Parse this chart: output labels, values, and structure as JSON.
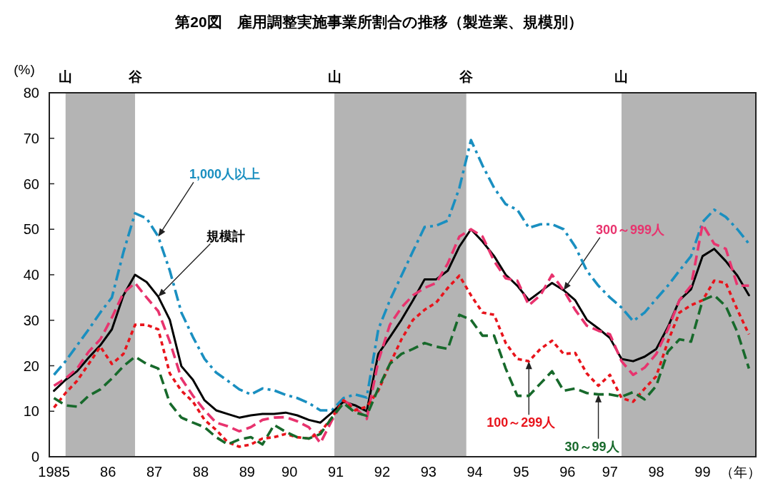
{
  "chart_data": {
    "type": "line",
    "title": "第20図　雇用調整実施事業所割合の推移（製造業、規模別）",
    "ylabel": "(%)",
    "xlabel": "（年）",
    "x": [
      "1985-01",
      "1985-04",
      "1985-07",
      "1985-10",
      "1986-01",
      "1986-04",
      "1986-07",
      "1986-10",
      "1987-01",
      "1987-04",
      "1987-07",
      "1987-10",
      "1988-01",
      "1988-04",
      "1988-07",
      "1988-10",
      "1989-01",
      "1989-04",
      "1989-07",
      "1989-10",
      "1990-01",
      "1990-04",
      "1990-07",
      "1990-10",
      "1991-01",
      "1991-04",
      "1991-07",
      "1991-10",
      "1992-01",
      "1992-04",
      "1992-07",
      "1992-10",
      "1993-01",
      "1993-04",
      "1993-07",
      "1993-10",
      "1994-01",
      "1994-04",
      "1994-07",
      "1994-10",
      "1995-01",
      "1995-04",
      "1995-07",
      "1995-10",
      "1996-01",
      "1996-04",
      "1996-07",
      "1996-10",
      "1997-01",
      "1997-04",
      "1997-07",
      "1997-10",
      "1998-01",
      "1998-04",
      "1998-07",
      "1998-10",
      "1999-01",
      "1999-04",
      "1999-07",
      "1999-10",
      "2000-01"
    ],
    "series": [
      {
        "name": "1,000人以上",
        "color": "#1a8fc0",
        "line_style": "dashdot",
        "values": [
          18,
          21,
          24.5,
          28,
          31.7,
          35,
          45,
          53.5,
          52.4,
          48.4,
          40.9,
          31.7,
          26.3,
          21.5,
          18.5,
          16.7,
          14.8,
          13.7,
          15,
          14.6,
          13.6,
          12.9,
          11.8,
          10.2,
          10.2,
          12.9,
          13.7,
          13,
          28,
          34.4,
          39.8,
          45.2,
          50.5,
          50.8,
          51.9,
          59.1,
          69.6,
          64,
          59.1,
          55.5,
          54.3,
          50.3,
          51.1,
          51.1,
          50,
          46.2,
          40.9,
          37.6,
          35,
          32.8,
          29.8,
          31.7,
          34.7,
          37.6,
          40.9,
          44.1,
          51.6,
          54.3,
          52.7,
          50,
          46.8
        ]
      },
      {
        "name": "規模計",
        "color": "#000000",
        "line_style": "solid",
        "values": [
          14.5,
          16.9,
          18.8,
          21.8,
          24.5,
          28,
          35.5,
          40,
          38.4,
          35.2,
          30.1,
          19.9,
          16.9,
          12.4,
          10.2,
          9.4,
          8.6,
          9.1,
          9.4,
          9.4,
          9.7,
          9.1,
          8.1,
          7.5,
          9.7,
          12.1,
          11.3,
          10,
          22.6,
          26.3,
          30.1,
          34.4,
          39,
          39,
          40.9,
          46.2,
          50,
          47.3,
          44.1,
          40,
          37.6,
          34.4,
          36.3,
          38.2,
          36.6,
          34.4,
          30.1,
          28.2,
          26.1,
          21.5,
          21,
          22,
          23.7,
          28.5,
          34.4,
          36.8,
          44.1,
          45.7,
          43,
          39.8,
          35.5
        ]
      },
      {
        "name": "300～999人",
        "color": "#e8336e",
        "line_style": "dashed",
        "values": [
          15.6,
          17.2,
          19.4,
          23.1,
          25.8,
          30.6,
          36,
          38.2,
          35,
          32,
          25.3,
          17.2,
          13.4,
          10.2,
          7.5,
          6.7,
          5.6,
          6.5,
          8.1,
          8.6,
          8.7,
          7.8,
          6.5,
          3,
          8,
          12.4,
          10.8,
          8.3,
          21,
          29,
          32.8,
          35.5,
          37.1,
          38.2,
          42.5,
          48.4,
          50,
          48.4,
          43,
          39.2,
          38.7,
          33.3,
          35.5,
          40,
          36.6,
          32.3,
          28.8,
          27.7,
          26.9,
          21,
          18,
          19.6,
          22.6,
          28,
          34.4,
          37.6,
          51.1,
          46.8,
          45.7,
          37.6,
          37.6
        ]
      },
      {
        "name": "100～299人",
        "color": "#e8141c",
        "line_style": "dotted",
        "values": [
          10.8,
          14,
          16.7,
          20.4,
          24.2,
          20.4,
          22.6,
          29,
          29,
          28,
          18.3,
          14.5,
          12.1,
          8.1,
          5.9,
          3.2,
          2.2,
          2.7,
          4,
          4.3,
          5,
          4.3,
          4,
          5.4,
          8.6,
          12.4,
          10.2,
          11,
          14.5,
          20.4,
          25.8,
          30.1,
          32.3,
          33.9,
          37.1,
          39.8,
          35.5,
          31.7,
          31.2,
          25,
          21.5,
          21,
          23.7,
          25.5,
          22.6,
          22.8,
          18.3,
          15.6,
          18,
          12.9,
          12.1,
          15,
          17.7,
          25.3,
          31.7,
          33.3,
          34.4,
          38.7,
          38.2,
          32.3,
          26.9
        ]
      },
      {
        "name": "30～99人",
        "color": "#17692b",
        "line_style": "dashed",
        "values": [
          12.9,
          11.3,
          11,
          13.4,
          14.8,
          17.2,
          19.9,
          22,
          20.4,
          19.4,
          11.8,
          8.6,
          7.5,
          6.5,
          4.3,
          2.7,
          3.8,
          4.3,
          2.7,
          7,
          5.5,
          4.3,
          4,
          5,
          8.6,
          11.8,
          9.7,
          9,
          15,
          20.4,
          22.6,
          23.7,
          25,
          24.2,
          23.7,
          31.2,
          30.1,
          26.6,
          26.6,
          19.4,
          13.4,
          13.4,
          16.1,
          18.8,
          14.5,
          15,
          14,
          13.7,
          13.7,
          13.2,
          14.2,
          12.6,
          15.6,
          23.1,
          25.8,
          25.3,
          34.4,
          35.5,
          33.1,
          27.4,
          19.4
        ]
      }
    ],
    "xlim": [
      "1984-11-25",
      "2000-02-25"
    ],
    "ylim": [
      0,
      80
    ],
    "xticks": [
      {
        "value": "1985-01",
        "label": "1985"
      },
      {
        "value": "1986-03",
        "label": "86"
      },
      {
        "value": "1987-03",
        "label": "87"
      },
      {
        "value": "1988-03",
        "label": "88"
      },
      {
        "value": "1989-03",
        "label": "89"
      },
      {
        "value": "1990-02",
        "label": "90"
      },
      {
        "value": "1991-02",
        "label": "91"
      },
      {
        "value": "1992-02",
        "label": "92"
      },
      {
        "value": "1993-02",
        "label": "93"
      },
      {
        "value": "1994-02",
        "label": "94"
      },
      {
        "value": "1995-02",
        "label": "95"
      },
      {
        "value": "1996-02",
        "label": "96"
      },
      {
        "value": "1997-01",
        "label": "97"
      },
      {
        "value": "1998-01",
        "label": "98"
      },
      {
        "value": "1999-01",
        "label": "99"
      }
    ],
    "yticks": [
      0,
      10,
      20,
      30,
      40,
      50,
      60,
      70,
      80
    ],
    "bands": [
      {
        "axis": "x",
        "from": "1985-04",
        "to": "1986-10",
        "color": "#b4b4b4"
      },
      {
        "axis": "x",
        "from": "1991-01-20",
        "to": "1993-11-25",
        "color": "#b4b4b4"
      },
      {
        "axis": "x",
        "from": "1997-04",
        "to": "2000-02-25",
        "color": "#b4b4b4"
      }
    ],
    "annotations": [
      {
        "text": "山",
        "x": "1985-04",
        "y": 80
      },
      {
        "text": "谷",
        "x": "1986-10",
        "y": 80
      },
      {
        "text": "山",
        "x": "1991-01-20",
        "y": 80
      },
      {
        "text": "谷",
        "x": "1993-11-25",
        "y": 80
      },
      {
        "text": "山",
        "x": "1997-04",
        "y": 80
      }
    ]
  }
}
